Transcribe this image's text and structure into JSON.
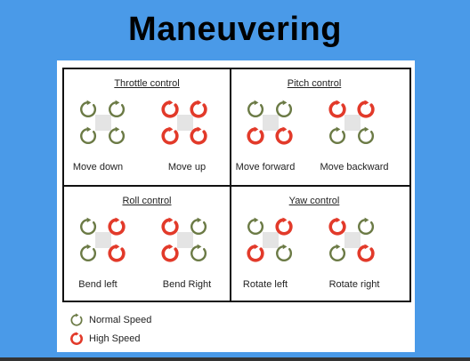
{
  "title": "Maneuvering",
  "colors": {
    "background": "#4a9ae8",
    "normal_speed": "#6b7a45",
    "high_speed": "#e23a2a"
  },
  "quadrants": [
    {
      "title": "Throttle control",
      "configs": [
        {
          "caption": "Move down",
          "rotors": [
            "normal",
            "normal",
            "normal",
            "normal"
          ]
        },
        {
          "caption": "Move up",
          "rotors": [
            "high",
            "high",
            "high",
            "high"
          ]
        }
      ]
    },
    {
      "title": "Pitch control",
      "configs": [
        {
          "caption": "Move forward",
          "rotors": [
            "normal",
            "normal",
            "high",
            "high"
          ]
        },
        {
          "caption": "Move backward",
          "rotors": [
            "high",
            "high",
            "normal",
            "normal"
          ]
        }
      ]
    },
    {
      "title": "Roll control",
      "configs": [
        {
          "caption": "Bend left",
          "rotors": [
            "normal",
            "high",
            "normal",
            "high"
          ]
        },
        {
          "caption": "Bend Right",
          "rotors": [
            "high",
            "normal",
            "high",
            "normal"
          ]
        }
      ]
    },
    {
      "title": "Yaw control",
      "configs": [
        {
          "caption": "Rotate left",
          "rotors": [
            "normal",
            "high",
            "high",
            "normal"
          ]
        },
        {
          "caption": "Rotate right",
          "rotors": [
            "high",
            "normal",
            "normal",
            "high"
          ]
        }
      ]
    }
  ],
  "legend": [
    {
      "label": "Normal Speed",
      "speed": "normal"
    },
    {
      "label": "High Speed",
      "speed": "high"
    }
  ]
}
